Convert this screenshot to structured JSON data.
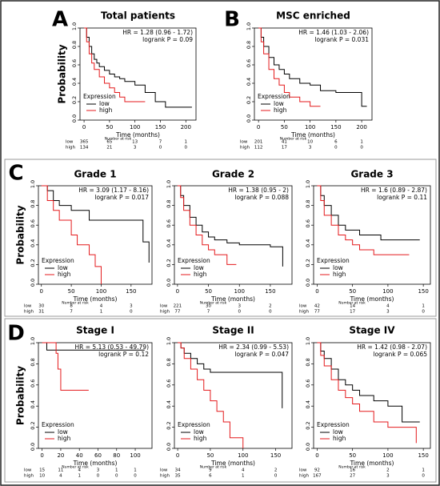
{
  "panel_labels": [
    "A",
    "B",
    "C",
    "D"
  ],
  "chart_data": [
    {
      "type": "line",
      "steps": true,
      "title": "Total patients",
      "ylabel": "Probability",
      "xlabel": "Time (months)",
      "annotations": [
        "HR = 1.28 (0.96 - 1.72)",
        "logrank P = 0.09"
      ],
      "legend_title": "Expression",
      "xlim": [
        -8,
        220
      ],
      "xticks": [
        0,
        50,
        100,
        150,
        200
      ],
      "ylim": [
        0,
        1
      ],
      "yticks": [
        {
          "value": 0,
          "label": "0.0"
        },
        0.2,
        0.4,
        0.6,
        0.8,
        {
          "value": 1,
          "label": "1.0"
        }
      ],
      "series": [
        {
          "name": "low",
          "color": "#000000",
          "x": [
            0,
            5,
            10,
            15,
            20,
            25,
            30,
            40,
            50,
            60,
            70,
            80,
            100,
            120,
            140,
            160,
            212
          ],
          "values": [
            1,
            0.9,
            0.8,
            0.72,
            0.66,
            0.62,
            0.58,
            0.54,
            0.5,
            0.47,
            0.45,
            0.42,
            0.38,
            0.3,
            0.2,
            0.14,
            0.14
          ]
        },
        {
          "name": "high",
          "color": "#e41a1c",
          "x": [
            0,
            5,
            10,
            15,
            20,
            30,
            40,
            50,
            60,
            70,
            80,
            120
          ],
          "values": [
            1,
            0.85,
            0.72,
            0.62,
            0.55,
            0.47,
            0.4,
            0.35,
            0.3,
            0.25,
            0.2,
            0.2
          ]
        }
      ],
      "risk_table": {
        "title": "Number at risk",
        "rows": [
          [
            365,
            65,
            13,
            7,
            1
          ],
          [
            134,
            21,
            3,
            0,
            0
          ]
        ]
      }
    },
    {
      "type": "line",
      "steps": true,
      "title": "MSC enriched",
      "xlabel": "Time (months)",
      "annotations": [
        "HR = 1.46 (1.03 - 2.06)",
        "logrank P = 0.031"
      ],
      "legend_title": "Expression",
      "xlim": [
        -8,
        220
      ],
      "xticks": [
        0,
        50,
        100,
        150,
        200
      ],
      "ylim": [
        0,
        1
      ],
      "yticks": [
        {
          "value": 0,
          "label": "0.0"
        },
        0.2,
        0.4,
        0.6,
        0.8,
        {
          "value": 1,
          "label": "1.0"
        }
      ],
      "series": [
        {
          "name": "low",
          "color": "#000000",
          "x": [
            0,
            5,
            10,
            20,
            30,
            40,
            50,
            60,
            80,
            100,
            120,
            150,
            200,
            210
          ],
          "values": [
            1,
            0.9,
            0.8,
            0.68,
            0.6,
            0.55,
            0.5,
            0.45,
            0.4,
            0.38,
            0.32,
            0.3,
            0.15,
            0.15
          ]
        },
        {
          "name": "high",
          "color": "#e41a1c",
          "x": [
            0,
            5,
            10,
            20,
            30,
            40,
            50,
            60,
            80,
            100,
            120
          ],
          "values": [
            1,
            0.85,
            0.72,
            0.55,
            0.45,
            0.38,
            0.3,
            0.25,
            0.2,
            0.15,
            0.15
          ]
        }
      ],
      "risk_table": {
        "title": "Number at risk",
        "rows": [
          [
            201,
            41,
            10,
            6,
            1
          ],
          [
            112,
            17,
            3,
            0,
            0
          ]
        ]
      }
    },
    {
      "type": "line",
      "steps": true,
      "title": "Grade 1",
      "ylabel": "Probability",
      "xlabel": "Time (months)",
      "annotations": [
        "HR = 3.09 (1.17 - 8.16)",
        "logrank P = 0.017"
      ],
      "legend_title": "Expression",
      "xlim": [
        -5,
        185
      ],
      "xticks": [
        0,
        50,
        100,
        150
      ],
      "ylim": [
        0,
        1
      ],
      "yticks": [
        {
          "value": 0,
          "label": "0.0"
        },
        0.2,
        0.4,
        0.6,
        0.8,
        {
          "value": 1,
          "label": "1.0"
        }
      ],
      "series": [
        {
          "name": "low",
          "color": "#000000",
          "x": [
            0,
            10,
            20,
            30,
            50,
            80,
            120,
            160,
            170,
            180
          ],
          "values": [
            1,
            0.95,
            0.85,
            0.8,
            0.75,
            0.65,
            0.65,
            0.65,
            0.43,
            0.22
          ]
        },
        {
          "name": "high",
          "color": "#e41a1c",
          "x": [
            0,
            10,
            20,
            30,
            50,
            60,
            80,
            90,
            100
          ],
          "values": [
            1,
            0.85,
            0.75,
            0.65,
            0.5,
            0.4,
            0.3,
            0.18,
            0
          ]
        }
      ],
      "risk_table": {
        "title": "Number at risk",
        "rows": [
          [
            30,
            8,
            4,
            3
          ],
          [
            31,
            7,
            1,
            0
          ]
        ]
      }
    },
    {
      "type": "line",
      "steps": true,
      "title": "Grade 2",
      "xlabel": "Time (months)",
      "annotations": [
        "HR = 1.38 (0.95 - 2)",
        "logrank P = 0.088"
      ],
      "legend_title": "Expression",
      "xlim": [
        -5,
        185
      ],
      "xticks": [
        0,
        50,
        100,
        150
      ],
      "ylim": [
        0,
        1
      ],
      "yticks": [
        {
          "value": 0,
          "label": "0.0"
        },
        0.2,
        0.4,
        0.6,
        0.8,
        {
          "value": 1,
          "label": "1.0"
        }
      ],
      "series": [
        {
          "name": "low",
          "color": "#000000",
          "x": [
            0,
            5,
            10,
            20,
            30,
            40,
            50,
            60,
            80,
            100,
            150,
            170
          ],
          "values": [
            1,
            0.9,
            0.8,
            0.68,
            0.6,
            0.53,
            0.48,
            0.45,
            0.42,
            0.4,
            0.38,
            0.18
          ]
        },
        {
          "name": "high",
          "color": "#e41a1c",
          "x": [
            0,
            5,
            10,
            20,
            30,
            40,
            50,
            60,
            80,
            95
          ],
          "values": [
            1,
            0.88,
            0.75,
            0.6,
            0.5,
            0.4,
            0.35,
            0.3,
            0.2,
            0.2
          ]
        }
      ],
      "risk_table": {
        "title": "Number at risk",
        "rows": [
          [
            221,
            30,
            3,
            2
          ],
          [
            77,
            7,
            0,
            0
          ]
        ]
      }
    },
    {
      "type": "line",
      "steps": true,
      "title": "Grade 3",
      "xlabel": "Time (months)",
      "annotations": [
        "HR = 1.6 (0.89 - 2.87)",
        "logrank P = 0.11"
      ],
      "legend_title": "Expression",
      "xlim": [
        -5,
        160
      ],
      "xticks": [
        0,
        50,
        100,
        150
      ],
      "ylim": [
        0,
        1
      ],
      "yticks": [
        {
          "value": 0,
          "label": "0.0"
        },
        0.2,
        0.4,
        0.6,
        0.8,
        {
          "value": 1,
          "label": "1.0"
        }
      ],
      "series": [
        {
          "name": "low",
          "color": "#000000",
          "x": [
            0,
            5,
            10,
            20,
            30,
            40,
            60,
            90,
            145
          ],
          "values": [
            1,
            0.9,
            0.8,
            0.7,
            0.6,
            0.55,
            0.5,
            0.45,
            0.45
          ]
        },
        {
          "name": "high",
          "color": "#e41a1c",
          "x": [
            0,
            5,
            10,
            20,
            30,
            40,
            50,
            60,
            80,
            130
          ],
          "values": [
            1,
            0.85,
            0.7,
            0.6,
            0.5,
            0.45,
            0.4,
            0.35,
            0.3,
            0.3
          ]
        }
      ],
      "risk_table": {
        "title": "Number at risk",
        "rows": [
          [
            42,
            14,
            4,
            1
          ],
          [
            77,
            17,
            3,
            0
          ]
        ]
      }
    },
    {
      "type": "line",
      "steps": true,
      "title": "Stage I",
      "ylabel": "Probability",
      "xlabel": "Time (months)",
      "annotations": [
        "HR = 5.13 (0.53 - 49.79)",
        "logrank P = 0.12"
      ],
      "legend_title": "Expression",
      "xlim": [
        -4,
        118
      ],
      "xticks": [
        0,
        20,
        40,
        60,
        80,
        100
      ],
      "ylim": [
        0,
        1
      ],
      "yticks": [
        {
          "value": 0,
          "label": "0.0"
        },
        0.2,
        0.4,
        0.6,
        0.8,
        {
          "value": 1,
          "label": "1.0"
        }
      ],
      "series": [
        {
          "name": "low",
          "color": "#000000",
          "x": [
            0,
            5,
            110
          ],
          "values": [
            1,
            0.93,
            0.93
          ]
        },
        {
          "name": "high",
          "color": "#e41a1c",
          "x": [
            0,
            15,
            17,
            20,
            50
          ],
          "values": [
            1,
            0.9,
            0.75,
            0.55,
            0.55
          ]
        }
      ],
      "risk_table": {
        "title": "Number at risk",
        "rows": [
          [
            15,
            11,
            4,
            3,
            1,
            1
          ],
          [
            10,
            4,
            1,
            0,
            0,
            0
          ]
        ]
      }
    },
    {
      "type": "line",
      "steps": true,
      "title": "Stage II",
      "xlabel": "Time (months)",
      "annotations": [
        "HR = 2.34 (0.99 - 5.53)",
        "logrank P = 0.047"
      ],
      "legend_title": "Expression",
      "xlim": [
        -5,
        175
      ],
      "xticks": [
        0,
        50,
        100,
        150
      ],
      "ylim": [
        0,
        1
      ],
      "yticks": [
        {
          "value": 0,
          "label": "0.0"
        },
        0.2,
        0.4,
        0.6,
        0.8,
        {
          "value": 1,
          "label": "1.0"
        }
      ],
      "series": [
        {
          "name": "low",
          "color": "#000000",
          "x": [
            0,
            5,
            10,
            20,
            30,
            40,
            50,
            150,
            160
          ],
          "values": [
            1,
            0.95,
            0.9,
            0.85,
            0.8,
            0.75,
            0.72,
            0.72,
            0.38
          ]
        },
        {
          "name": "high",
          "color": "#e41a1c",
          "x": [
            0,
            5,
            10,
            20,
            30,
            40,
            50,
            60,
            70,
            80,
            100
          ],
          "values": [
            1,
            0.95,
            0.85,
            0.75,
            0.65,
            0.55,
            0.45,
            0.35,
            0.25,
            0.1,
            0
          ]
        }
      ],
      "risk_table": {
        "title": "Number at risk",
        "rows": [
          [
            34,
            9,
            4,
            2
          ],
          [
            35,
            6,
            1,
            0
          ]
        ]
      }
    },
    {
      "type": "line",
      "steps": true,
      "title": "Stage IV",
      "xlabel": "Time (months)",
      "annotations": [
        "HR = 1.42 (0.98 - 2.07)",
        "logrank P = 0.065"
      ],
      "legend_title": "Expression",
      "xlim": [
        -5,
        160
      ],
      "xticks": [
        0,
        50,
        100,
        150
      ],
      "ylim": [
        0,
        1
      ],
      "yticks": [
        {
          "value": 0,
          "label": "0.0"
        },
        0.2,
        0.4,
        0.6,
        0.8,
        {
          "value": 1,
          "label": "1.0"
        }
      ],
      "series": [
        {
          "name": "low",
          "color": "#000000",
          "x": [
            0,
            5,
            10,
            20,
            30,
            40,
            50,
            60,
            80,
            100,
            120,
            145
          ],
          "values": [
            1,
            0.92,
            0.85,
            0.75,
            0.65,
            0.6,
            0.55,
            0.5,
            0.45,
            0.4,
            0.25,
            0.25
          ]
        },
        {
          "name": "high",
          "color": "#e41a1c",
          "x": [
            0,
            5,
            10,
            20,
            30,
            40,
            50,
            60,
            80,
            100,
            140
          ],
          "values": [
            1,
            0.88,
            0.78,
            0.65,
            0.55,
            0.48,
            0.42,
            0.35,
            0.25,
            0.2,
            0.05
          ]
        }
      ],
      "risk_table": {
        "title": "Number at risk",
        "rows": [
          [
            92,
            16,
            2,
            1
          ],
          [
            167,
            27,
            3,
            0
          ]
        ]
      }
    }
  ]
}
